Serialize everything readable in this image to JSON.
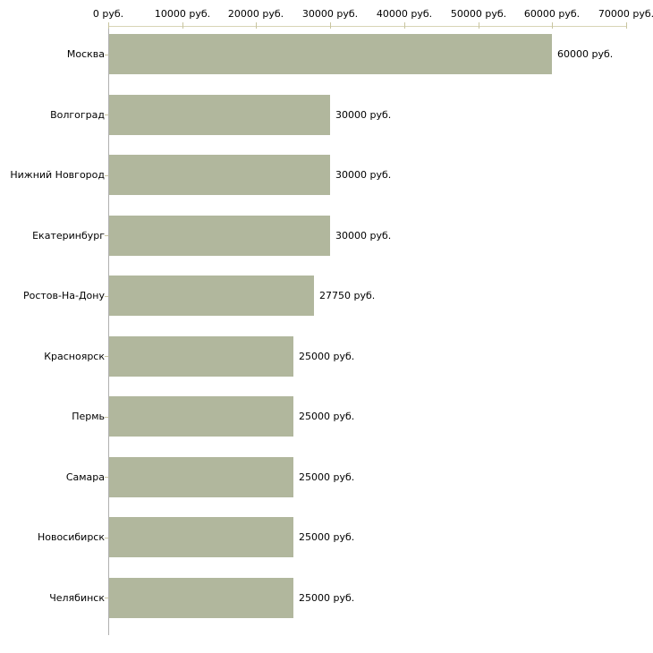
{
  "chart_data": {
    "type": "bar",
    "orientation": "horizontal",
    "unit": "руб.",
    "categories": [
      "Москва",
      "Волгоград",
      "Нижний Новгород",
      "Екатеринбург",
      "Ростов-На-Дону",
      "Красноярск",
      "Пермь",
      "Самара",
      "Новосибирск",
      "Челябинск"
    ],
    "values": [
      60000,
      30000,
      30000,
      30000,
      27750,
      25000,
      25000,
      25000,
      25000,
      25000
    ],
    "value_labels": [
      "60000 руб.",
      "30000 руб.",
      "30000 руб.",
      "30000 руб.",
      "27750 руб.",
      "25000 руб.",
      "25000 руб.",
      "25000 руб.",
      "25000 руб.",
      "25000 руб."
    ],
    "x_tick_values": [
      0,
      10000,
      20000,
      30000,
      40000,
      50000,
      60000,
      70000
    ],
    "x_tick_labels": [
      "0 руб.",
      "10000 руб.",
      "20000 руб.",
      "30000 руб.",
      "40000 руб.",
      "50000 руб.",
      "60000 руб.",
      "70000 руб."
    ],
    "xlim": [
      0,
      70000
    ],
    "x_axis_position": "top",
    "grid": false,
    "legend": false,
    "colors": {
      "bar": "#b1b79d",
      "x_axis_line": "#d8d4b6",
      "x_axis_tick": "#c9c5a0",
      "y_axis_line": "#b0b0b0",
      "text": "#000000",
      "background": "#ffffff"
    }
  }
}
